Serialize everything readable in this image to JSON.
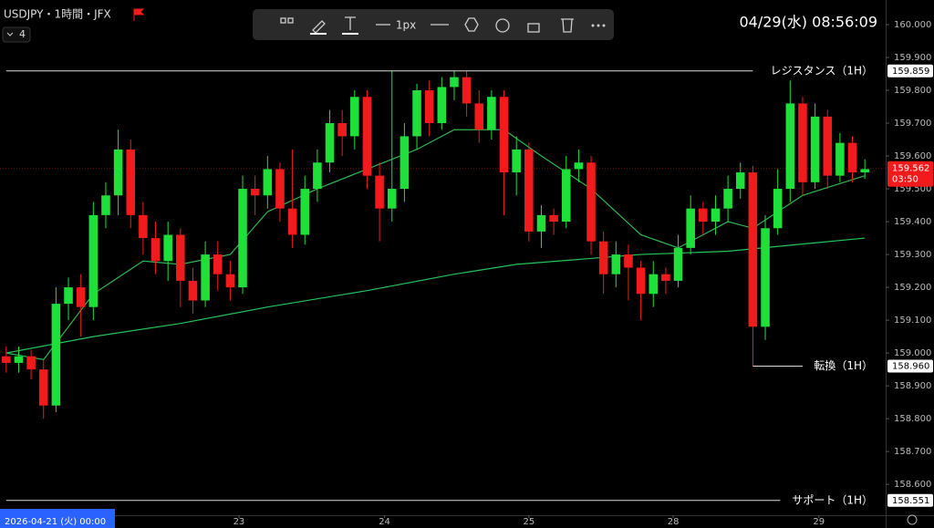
{
  "chart_data": {
    "type": "candlestick",
    "symbol": "USDJPY・1時間・JFX",
    "indicator_count": "4",
    "datetime": "04/29(水)  08:56:09",
    "toolbar_width": "1px",
    "cursor_date": "2026-04-21 (火)  00:00",
    "up_color": "#1fe03a",
    "down_color": "#f21b1b",
    "xlim": [
      -0.5,
      69.5
    ],
    "xticks": [
      {
        "value": 18.7,
        "label": "23"
      },
      {
        "value": 30.4,
        "label": "24"
      },
      {
        "value": 42.0,
        "label": "25"
      },
      {
        "value": 53.6,
        "label": "28"
      },
      {
        "value": 65.3,
        "label": "29"
      }
    ],
    "ylim": [
      158.506,
      160.075
    ],
    "yticks": [
      {
        "value": 158.6,
        "label": "158.600"
      },
      {
        "value": 158.7,
        "label": "158.700"
      },
      {
        "value": 158.8,
        "label": "158.800"
      },
      {
        "value": 158.9,
        "label": "158.900"
      },
      {
        "value": 159.0,
        "label": "159.000"
      },
      {
        "value": 159.1,
        "label": "159.100"
      },
      {
        "value": 159.2,
        "label": "159.200"
      },
      {
        "value": 159.3,
        "label": "159.300"
      },
      {
        "value": 159.4,
        "label": "159.400"
      },
      {
        "value": 159.5,
        "label": "159.500"
      },
      {
        "value": 159.6,
        "label": "159.600"
      },
      {
        "value": 159.7,
        "label": "159.700"
      },
      {
        "value": 159.8,
        "label": "159.800"
      },
      {
        "value": 159.9,
        "label": "159.900"
      },
      {
        "value": 160.0,
        "label": "160.000"
      }
    ],
    "open": [
      158.99,
      158.97,
      158.99,
      158.95,
      158.84,
      159.15,
      159.2,
      159.14,
      159.42,
      159.48,
      159.62,
      159.42,
      159.35,
      159.28,
      159.36,
      159.22,
      159.16,
      159.3,
      159.24,
      159.2,
      159.5,
      159.48,
      159.56,
      159.44,
      159.36,
      159.5,
      159.58,
      159.7,
      159.66,
      159.78,
      159.54,
      159.44,
      159.5,
      159.66,
      159.8,
      159.7,
      159.81,
      159.84,
      159.76,
      159.68,
      159.78,
      159.55,
      159.62,
      159.37,
      159.42,
      159.4,
      159.56,
      159.58,
      159.34,
      159.24,
      159.3,
      159.26,
      159.18,
      159.24,
      159.22,
      159.32,
      159.44,
      159.4,
      159.44,
      159.5,
      159.55,
      159.08,
      159.38,
      159.5,
      159.76,
      159.52,
      159.72,
      159.54,
      159.64,
      159.55
    ],
    "high": [
      159.02,
      159.02,
      159.01,
      158.98,
      159.2,
      159.23,
      159.24,
      159.46,
      159.52,
      159.68,
      159.65,
      159.46,
      159.4,
      159.4,
      159.38,
      159.26,
      159.34,
      159.34,
      159.28,
      159.54,
      159.54,
      159.6,
      159.58,
      159.62,
      159.54,
      159.62,
      159.74,
      159.74,
      159.8,
      159.8,
      159.58,
      159.86,
      159.7,
      159.82,
      159.83,
      159.84,
      159.86,
      159.86,
      159.8,
      159.8,
      159.8,
      159.66,
      159.64,
      159.45,
      159.44,
      159.6,
      159.62,
      159.6,
      159.37,
      159.34,
      159.33,
      159.28,
      159.28,
      159.26,
      159.36,
      159.48,
      159.46,
      159.48,
      159.54,
      159.58,
      159.57,
      159.42,
      159.56,
      159.83,
      159.78,
      159.76,
      159.74,
      159.67,
      159.66,
      159.59
    ],
    "low": [
      158.94,
      158.94,
      158.92,
      158.8,
      158.82,
      159.1,
      159.05,
      159.1,
      159.38,
      159.42,
      159.38,
      159.3,
      159.24,
      159.22,
      159.14,
      159.12,
      159.14,
      159.19,
      159.16,
      159.18,
      159.42,
      159.44,
      159.4,
      159.32,
      159.33,
      159.46,
      159.55,
      159.6,
      159.62,
      159.5,
      159.34,
      159.4,
      159.46,
      159.62,
      159.66,
      159.68,
      159.77,
      159.72,
      159.64,
      159.65,
      159.42,
      159.48,
      159.34,
      159.32,
      159.36,
      159.38,
      159.52,
      159.3,
      159.18,
      159.2,
      159.16,
      159.1,
      159.14,
      159.18,
      159.2,
      159.3,
      159.36,
      159.36,
      159.4,
      159.47,
      158.96,
      159.04,
      159.36,
      159.46,
      159.48,
      159.5,
      159.5,
      159.52,
      159.52,
      159.53
    ],
    "close": [
      158.97,
      158.99,
      158.95,
      158.84,
      159.15,
      159.2,
      159.14,
      159.42,
      159.48,
      159.62,
      159.42,
      159.35,
      159.28,
      159.36,
      159.22,
      159.16,
      159.3,
      159.24,
      159.2,
      159.5,
      159.48,
      159.56,
      159.44,
      159.36,
      159.5,
      159.58,
      159.7,
      159.66,
      159.78,
      159.54,
      159.44,
      159.5,
      159.66,
      159.8,
      159.7,
      159.81,
      159.84,
      159.76,
      159.68,
      159.78,
      159.55,
      159.62,
      159.37,
      159.42,
      159.4,
      159.56,
      159.58,
      159.34,
      159.24,
      159.3,
      159.26,
      159.18,
      159.24,
      159.22,
      159.32,
      159.44,
      159.4,
      159.44,
      159.5,
      159.55,
      159.08,
      159.38,
      159.5,
      159.76,
      159.52,
      159.72,
      159.54,
      159.64,
      159.55,
      159.56
    ],
    "moving_averages": [
      {
        "color": "#2fb552",
        "x": [
          0,
          3,
          7,
          11,
          14,
          18,
          21,
          25,
          29,
          33,
          36,
          40,
          43,
          47,
          51,
          54,
          58,
          60,
          64,
          69
        ],
        "values": [
          159.0,
          158.98,
          159.18,
          159.28,
          159.27,
          159.3,
          159.43,
          159.5,
          159.56,
          159.62,
          159.68,
          159.68,
          159.6,
          159.5,
          159.36,
          159.32,
          159.4,
          159.38,
          159.48,
          159.54
        ]
      },
      {
        "color": "#24c45a",
        "x": [
          0,
          7,
          14,
          21,
          29,
          36,
          41,
          51,
          58,
          69
        ],
        "values": [
          159.0,
          159.05,
          159.09,
          159.14,
          159.19,
          159.24,
          159.27,
          159.3,
          159.31,
          159.35
        ]
      }
    ],
    "levels": [
      {
        "name": "レジスタンス（1H）",
        "value": 159.859,
        "label": "159.859",
        "start": 0,
        "end": 60
      },
      {
        "name": "転換（1H）",
        "value": 158.96,
        "label": "158.960",
        "start": 60,
        "end": 64
      },
      {
        "name": "サポート（1H）",
        "value": 158.551,
        "label": "158.551",
        "start": 0,
        "end": 62.2
      }
    ],
    "last_price": {
      "value": 159.562,
      "label": "159.562",
      "countdown": "03:50",
      "color": "#f21b1b"
    }
  }
}
